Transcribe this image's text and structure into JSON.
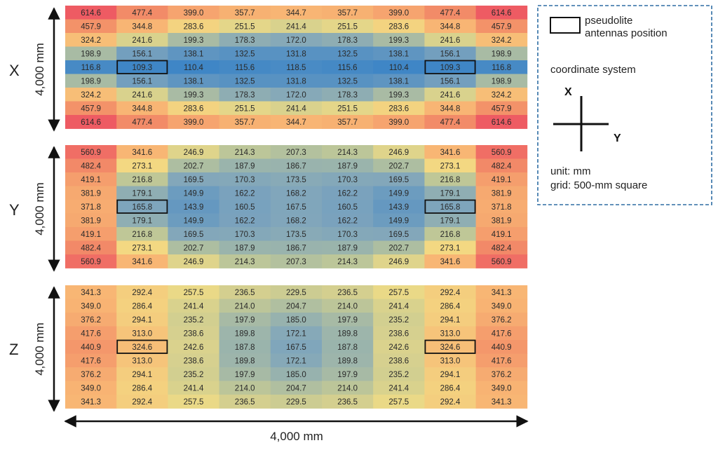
{
  "chart_data": {
    "type": "heatmap",
    "panels": [
      {
        "label": "X",
        "dimension_label": "4,000 mm",
        "rows": [
          [
            614.6,
            477.4,
            399.0,
            357.7,
            344.7,
            357.7,
            399.0,
            477.4,
            614.6
          ],
          [
            457.9,
            344.8,
            283.6,
            251.5,
            241.4,
            251.5,
            283.6,
            344.8,
            457.9
          ],
          [
            324.2,
            241.6,
            199.3,
            178.3,
            172.0,
            178.3,
            199.3,
            241.6,
            324.2
          ],
          [
            198.9,
            156.1,
            138.1,
            132.5,
            131.8,
            132.5,
            138.1,
            156.1,
            198.9
          ],
          [
            116.8,
            109.3,
            110.4,
            115.6,
            118.5,
            115.6,
            110.4,
            109.3,
            116.8
          ],
          [
            198.9,
            156.1,
            138.1,
            132.5,
            131.8,
            132.5,
            138.1,
            156.1,
            198.9
          ],
          [
            324.2,
            241.6,
            199.3,
            178.3,
            172.0,
            178.3,
            199.3,
            241.6,
            324.2
          ],
          [
            457.9,
            344.8,
            283.6,
            251.5,
            241.4,
            251.5,
            283.6,
            344.8,
            457.9
          ],
          [
            614.6,
            477.4,
            399.0,
            357.7,
            344.7,
            357.7,
            399.0,
            477.4,
            614.6
          ]
        ]
      },
      {
        "label": "Y",
        "dimension_label": "4,000 mm",
        "rows": [
          [
            560.9,
            341.6,
            246.9,
            214.3,
            207.3,
            214.3,
            246.9,
            341.6,
            560.9
          ],
          [
            482.4,
            273.1,
            202.7,
            187.9,
            186.7,
            187.9,
            202.7,
            273.1,
            482.4
          ],
          [
            419.1,
            216.8,
            169.5,
            170.3,
            173.5,
            170.3,
            169.5,
            216.8,
            419.1
          ],
          [
            381.9,
            179.1,
            149.9,
            162.2,
            168.2,
            162.2,
            149.9,
            179.1,
            381.9
          ],
          [
            371.8,
            165.8,
            143.9,
            160.5,
            167.5,
            160.5,
            143.9,
            165.8,
            371.8
          ],
          [
            381.9,
            179.1,
            149.9,
            162.2,
            168.2,
            162.2,
            149.9,
            179.1,
            381.9
          ],
          [
            419.1,
            216.8,
            169.5,
            170.3,
            173.5,
            170.3,
            169.5,
            216.8,
            419.1
          ],
          [
            482.4,
            273.1,
            202.7,
            187.9,
            186.7,
            187.9,
            202.7,
            273.1,
            482.4
          ],
          [
            560.9,
            341.6,
            246.9,
            214.3,
            207.3,
            214.3,
            246.9,
            341.6,
            560.9
          ]
        ]
      },
      {
        "label": "Z",
        "dimension_label": "4,000 mm",
        "rows": [
          [
            341.3,
            292.4,
            257.5,
            236.5,
            229.5,
            236.5,
            257.5,
            292.4,
            341.3
          ],
          [
            349.0,
            286.4,
            241.4,
            214.0,
            204.7,
            214.0,
            241.4,
            286.4,
            349.0
          ],
          [
            376.2,
            294.1,
            235.2,
            197.9,
            185.0,
            197.9,
            235.2,
            294.1,
            376.2
          ],
          [
            417.6,
            313.0,
            238.6,
            189.8,
            172.1,
            189.8,
            238.6,
            313.0,
            417.6
          ],
          [
            440.9,
            324.6,
            242.6,
            187.8,
            167.5,
            187.8,
            242.6,
            324.6,
            440.9
          ],
          [
            417.6,
            313.0,
            238.6,
            189.8,
            172.1,
            189.8,
            238.6,
            313.0,
            417.6
          ],
          [
            376.2,
            294.1,
            235.2,
            197.9,
            185.0,
            197.9,
            235.2,
            294.1,
            376.2
          ],
          [
            349.0,
            286.4,
            241.4,
            214.0,
            204.7,
            214.0,
            241.4,
            286.4,
            349.0
          ],
          [
            341.3,
            292.4,
            257.5,
            236.5,
            229.5,
            236.5,
            257.5,
            292.4,
            341.3
          ]
        ]
      }
    ],
    "antenna_cells": [
      [
        4,
        1
      ],
      [
        4,
        7
      ]
    ],
    "bottom_dimension_label": "4,000 mm",
    "color_scale": {
      "stops": [
        {
          "value": 110,
          "color": "#3f86c6"
        },
        {
          "value": 165,
          "color": "#7da4bd"
        },
        {
          "value": 215,
          "color": "#bdc698"
        },
        {
          "value": 265,
          "color": "#f2dc84"
        },
        {
          "value": 340,
          "color": "#f8b674"
        },
        {
          "value": 460,
          "color": "#f39169"
        },
        {
          "value": 615,
          "color": "#ee5b63"
        }
      ]
    }
  },
  "legend": {
    "antenna_label_line1": "pseudolite",
    "antenna_label_line2": "antennas position",
    "coordinate_title": "coordinate system",
    "axis_x": "X",
    "axis_y": "Y",
    "unit_line": "unit: mm",
    "grid_line": "grid: 500-mm square",
    "border_color": "#2e6da4"
  }
}
